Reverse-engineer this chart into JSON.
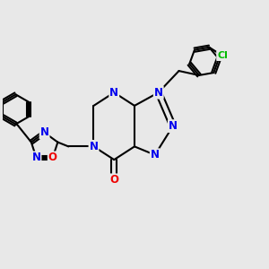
{
  "background_color": "#e8e8e8",
  "bond_color": "#000000",
  "bond_width": 1.5,
  "atom_colors": {
    "N": "#0000ee",
    "O": "#ee0000",
    "Cl": "#00bb00",
    "C": "#000000"
  }
}
